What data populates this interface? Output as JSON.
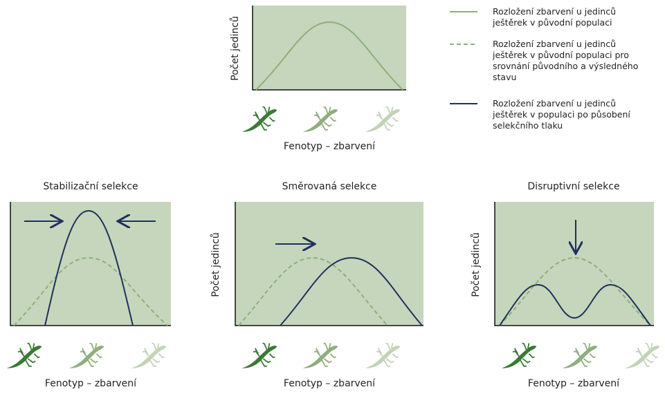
{
  "top_panel": {
    "y_label": "Počet jedinců",
    "x_label": "Fenotyp – zbarvení"
  },
  "legend": [
    {
      "lines": [
        "Rozložení zbarvení u jedinců",
        "ještěrek v původní populaci"
      ]
    },
    {
      "lines": [
        "Rozložení zbarvení u jedinců",
        "ještěrek v původní populaci pro",
        "srovnání původního a výsledného",
        "stavu"
      ]
    },
    {
      "lines": [
        "Rozložení zbarvení u jedinců",
        "ještěrek v populaci po působení",
        "selekčního tlaku"
      ]
    }
  ],
  "panels": [
    {
      "title": "Stabilizační selekce",
      "x_label": "Fenotyp – zbarvení"
    },
    {
      "title": "Směrovaná selekce",
      "y_label": "Počet jedinců",
      "x_label": "Fenotyp – zbarvení"
    },
    {
      "title": "Disruptivní selekce",
      "y_label": "Počet jedinců",
      "x_label": "Fenotyp – zbarvení"
    }
  ]
}
